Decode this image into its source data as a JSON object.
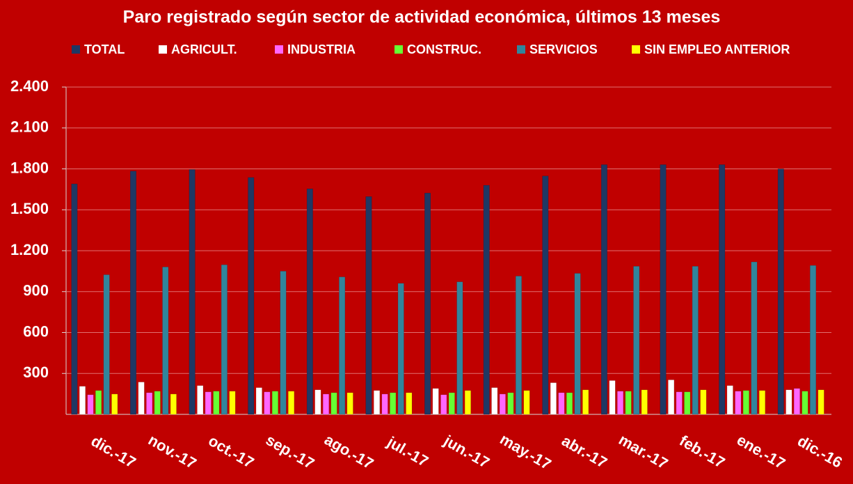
{
  "chart_data": {
    "type": "bar",
    "title": "Paro registrado según sector de actividad económica, últimos 13 meses",
    "categories": [
      "dic.-17",
      "nov.-17",
      "oct.-17",
      "sep.-17",
      "ago.-17",
      "jul.-17",
      "jun.-17",
      "may.-17",
      "abr.-17",
      "mar.-17",
      "feb.-17",
      "ene.-17",
      "dic.-16"
    ],
    "series": [
      {
        "name": "TOTAL",
        "color": "#1f3864",
        "values": [
          1690,
          1784,
          1795,
          1737,
          1654,
          1597,
          1623,
          1680,
          1748,
          1831,
          1831,
          1831,
          1800
        ]
      },
      {
        "name": "AGRICULT.",
        "color": "#ffffff",
        "values": [
          206,
          237,
          211,
          196,
          180,
          175,
          190,
          196,
          232,
          248,
          253,
          211,
          180
        ]
      },
      {
        "name": "INDUSTRIA",
        "color": "#ff66ff",
        "values": [
          144,
          159,
          165,
          165,
          149,
          149,
          144,
          149,
          159,
          170,
          165,
          170,
          190
        ]
      },
      {
        "name": "CONSTRUC.",
        "color": "#66ff33",
        "values": [
          175,
          170,
          170,
          170,
          159,
          159,
          159,
          159,
          159,
          170,
          165,
          175,
          170
        ]
      },
      {
        "name": "SERVICIOS",
        "color": "#31859c",
        "values": [
          1024,
          1081,
          1097,
          1050,
          1008,
          961,
          972,
          1014,
          1034,
          1086,
          1086,
          1118,
          1092
        ]
      },
      {
        "name": "SIN EMPLEO ANTERIOR",
        "color": "#ffff00",
        "values": [
          149,
          149,
          170,
          170,
          159,
          159,
          175,
          175,
          180,
          180,
          180,
          175,
          180
        ]
      }
    ],
    "ylim": [
      0,
      2400
    ],
    "yticks": [
      300,
      600,
      900,
      {
        "value": 1200,
        "label": "1.200"
      },
      {
        "value": 1500,
        "label": "1.500"
      },
      {
        "value": 1800,
        "label": "1.800"
      },
      {
        "value": 2100,
        "label": "2.100"
      },
      {
        "value": 2400,
        "label": "2.400"
      }
    ],
    "grid": true
  }
}
